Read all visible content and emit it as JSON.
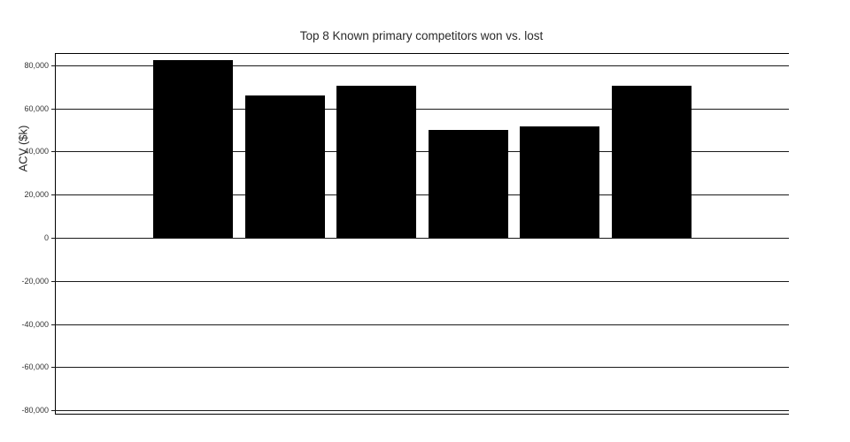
{
  "chart_data": {
    "type": "bar",
    "title": "Top 8 Known primary competitors won vs. lost",
    "xlabel": "",
    "ylabel": "ACV ($k)",
    "categories": [
      "",
      "",
      "",
      "",
      "",
      "",
      "",
      ""
    ],
    "values": [
      0,
      82500,
      66000,
      70500,
      50000,
      51500,
      70500,
      0
    ],
    "yticks": [
      80000,
      60000,
      40000,
      20000,
      0,
      -20000,
      -40000,
      -60000,
      -80000
    ],
    "ytick_labels": [
      "80,000",
      "60,000",
      "40,000",
      "20,000",
      "0",
      "-20,000",
      "-40,000",
      "-60,000",
      "-80,000"
    ],
    "ylim": [
      -81600,
      85300
    ],
    "grid": true,
    "legend_position": "none",
    "bar_color": "#000000",
    "bar_width_frac": 0.87,
    "background_color": "#ffffff",
    "grid_color": "#1a1a1a"
  }
}
